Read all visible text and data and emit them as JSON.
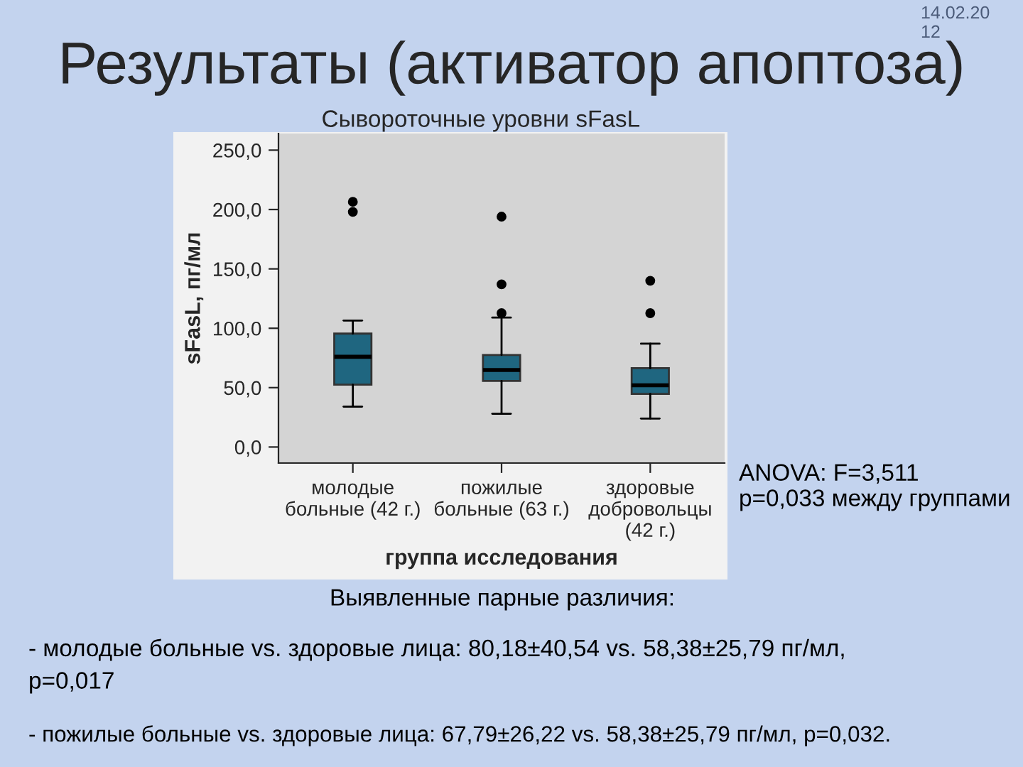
{
  "chart_data": {
    "type": "box",
    "title": "Результаты (активатор апоптоза)",
    "subtitle": "Сывороточные уровни sFasL",
    "xlabel": "группа исследования",
    "ylabel": "sFasL, пг/мл",
    "categories": [
      "молодые\nбольные (42 г.)",
      "пожилые\nбольные (63 г.)",
      "здоровые\nдобровольцы\n(42 г.)"
    ],
    "color": "#1f6680",
    "boxes": [
      {
        "low": 34,
        "q1": 52.5,
        "median": 76,
        "q3": 95.5,
        "high": 106.5,
        "outliers": [
          198,
          206.5
        ]
      },
      {
        "low": 28,
        "q1": 55.7,
        "median": 64.8,
        "q3": 77.5,
        "high": 109,
        "outliers": [
          112.7,
          137,
          194
        ]
      },
      {
        "low": 24,
        "q1": 44.7,
        "median": 52,
        "q3": 66.4,
        "high": 87,
        "outliers": [
          112.7,
          140
        ]
      }
    ],
    "ylim": [
      -13.5,
      264
    ],
    "yticks": [
      {
        "value": 0,
        "label": "0,0"
      },
      {
        "value": 50,
        "label": "50,0"
      },
      {
        "value": 100,
        "label": "100,0"
      },
      {
        "value": 150,
        "label": "150,0"
      },
      {
        "value": 200,
        "label": "200,0"
      },
      {
        "value": 250,
        "label": "250,0"
      }
    ],
    "grid": false,
    "annotations": [
      "14.02.20\n12",
      "ANOVA: F=3,511\np=0,033 между группами",
      "Выявленные парные различия:",
      "- молодые больные vs. здоровые лица: 80,18±40,54 vs. 58,38±25,79 пг/мл,\np=0,017",
      "- пожилые больные vs. здоровые лица: 67,79±26,22 vs. 58,38±25,79 пг/мл, p=0,032."
    ]
  }
}
